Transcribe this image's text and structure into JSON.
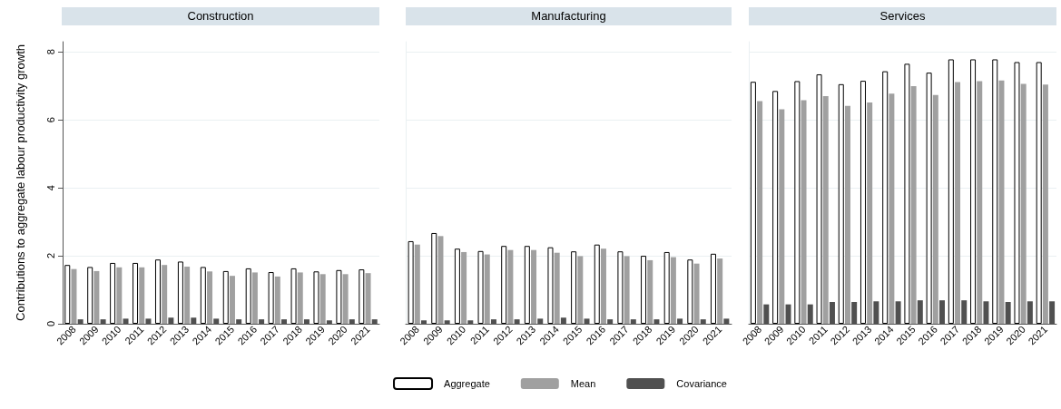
{
  "chart_data": [
    {
      "type": "bar",
      "title": "Construction",
      "ylabel": "Contributions to aggregate labour productivity growth",
      "categories": [
        "2008",
        "2009",
        "2010",
        "2011",
        "2012",
        "2013",
        "2014",
        "2015",
        "2016",
        "2017",
        "2018",
        "2019",
        "2020",
        "2021"
      ],
      "ylim": [
        0,
        8.3
      ],
      "yticks": [
        0,
        2,
        4,
        6,
        8
      ],
      "grid": "y",
      "legend": false,
      "series": [
        {
          "color": "#ffffff",
          "values": [
            1.73,
            1.67,
            1.79,
            1.79,
            1.89,
            1.83,
            1.67,
            1.55,
            1.63,
            1.52,
            1.63,
            1.54,
            1.58,
            1.6
          ]
        },
        {
          "color": "#a0a0a0",
          "values": [
            1.61,
            1.55,
            1.66,
            1.66,
            1.73,
            1.68,
            1.54,
            1.41,
            1.51,
            1.39,
            1.51,
            1.46,
            1.46,
            1.49
          ]
        },
        {
          "color": "#505050",
          "values": [
            0.13,
            0.13,
            0.15,
            0.15,
            0.18,
            0.18,
            0.15,
            0.13,
            0.13,
            0.13,
            0.13,
            0.1,
            0.13,
            0.13
          ]
        }
      ]
    },
    {
      "type": "bar",
      "title": "Manufacturing",
      "categories": [
        "2008",
        "2009",
        "2010",
        "2011",
        "2012",
        "2013",
        "2014",
        "2015",
        "2016",
        "2017",
        "2018",
        "2019",
        "2020",
        "2021"
      ],
      "ylim": [
        0,
        8.3
      ],
      "yticks": [
        0,
        2,
        4,
        6,
        8
      ],
      "grid": "y",
      "legend": "bottom",
      "tick_labels": "x",
      "series": [
        {
          "name": "Aggregate",
          "color": "#ffffff",
          "values": [
            2.43,
            2.67,
            2.21,
            2.14,
            2.29,
            2.29,
            2.25,
            2.13,
            2.33,
            2.13,
            2.0,
            2.11,
            1.89,
            2.06
          ]
        },
        {
          "name": "Mean",
          "color": "#a0a0a0",
          "values": [
            2.33,
            2.58,
            2.11,
            2.04,
            2.17,
            2.17,
            2.09,
            1.99,
            2.21,
            1.99,
            1.87,
            1.96,
            1.77,
            1.92
          ]
        },
        {
          "name": "Covariance",
          "color": "#505050",
          "values": [
            0.1,
            0.1,
            0.1,
            0.13,
            0.13,
            0.15,
            0.18,
            0.15,
            0.13,
            0.13,
            0.13,
            0.15,
            0.13,
            0.15
          ]
        }
      ]
    },
    {
      "type": "bar",
      "title": "Services",
      "categories": [
        "2008",
        "2009",
        "2010",
        "2011",
        "2012",
        "2013",
        "2014",
        "2015",
        "2016",
        "2017",
        "2018",
        "2019",
        "2020",
        "2021"
      ],
      "ylim": [
        0,
        8.3
      ],
      "yticks": [
        0,
        2,
        4,
        6,
        8
      ],
      "grid": "y",
      "legend": false,
      "tick_labels": "x",
      "series": [
        {
          "color": "#ffffff",
          "values": [
            7.12,
            6.85,
            7.14,
            7.34,
            7.05,
            7.15,
            7.43,
            7.65,
            7.39,
            7.78,
            7.78,
            7.78,
            7.7,
            7.7
          ]
        },
        {
          "color": "#a0a0a0",
          "values": [
            6.55,
            6.31,
            6.58,
            6.7,
            6.41,
            6.51,
            6.77,
            6.99,
            6.73,
            7.11,
            7.14,
            7.16,
            7.06,
            7.04
          ]
        },
        {
          "color": "#505050",
          "values": [
            0.57,
            0.57,
            0.57,
            0.64,
            0.64,
            0.66,
            0.66,
            0.69,
            0.69,
            0.69,
            0.66,
            0.64,
            0.66,
            0.66
          ]
        }
      ]
    }
  ]
}
